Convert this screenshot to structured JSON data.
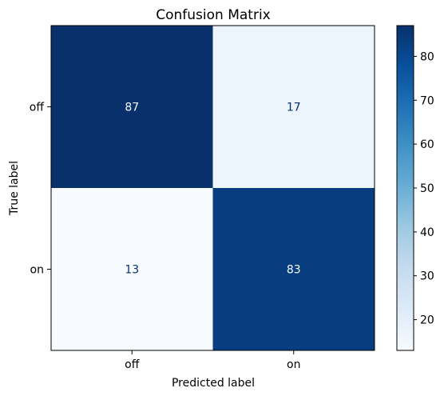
{
  "chart_data": {
    "type": "heatmap",
    "title": "Confusion Matrix",
    "xlabel": "Predicted label",
    "ylabel": "True label",
    "x_categories": [
      "off",
      "on"
    ],
    "y_categories": [
      "off",
      "on"
    ],
    "values": [
      [
        87,
        17
      ],
      [
        13,
        83
      ]
    ],
    "colormap": "Blues",
    "colorbar": {
      "range": [
        13,
        87
      ],
      "ticks": [
        "20",
        "30",
        "40",
        "50",
        "60",
        "70",
        "80"
      ]
    },
    "grid": false,
    "colors": {
      "low": "#f7fbff",
      "high": "#08306b",
      "text_light": "#f7fbff",
      "text_dark": "#08306b"
    }
  }
}
